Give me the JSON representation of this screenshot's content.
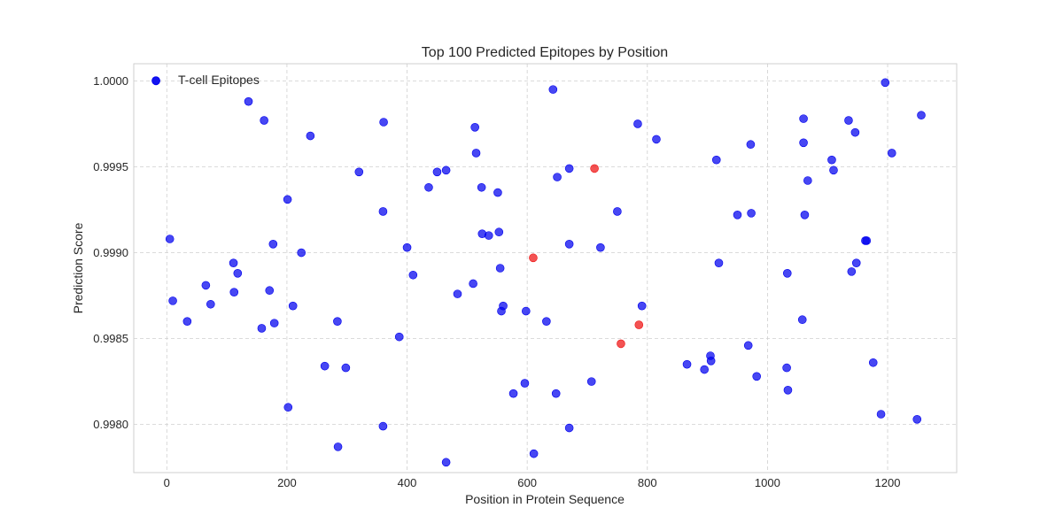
{
  "chart_data": {
    "type": "scatter",
    "title": "Top 100 Predicted Epitopes by Position",
    "xlabel": "Position in Protein Sequence",
    "ylabel": "Prediction Score",
    "xlim": [
      -55,
      1315
    ],
    "ylim": [
      0.99772,
      1.0001
    ],
    "xticks": [
      0,
      200,
      400,
      600,
      800,
      1000,
      1200
    ],
    "xtick_labels": [
      "0",
      "200",
      "400",
      "600",
      "800",
      "1000",
      "1200"
    ],
    "yticks": [
      0.998,
      0.9985,
      0.999,
      0.9995,
      1.0
    ],
    "ytick_labels": [
      "0.9980",
      "0.9985",
      "0.9990",
      "0.9995",
      "1.0000"
    ],
    "grid": true,
    "legend": {
      "position": "top-left",
      "entries": [
        "T-cell Epitopes"
      ]
    },
    "colors": {
      "primary": "#0000ee",
      "highlight": "#ee1111"
    },
    "series": [
      {
        "name": "T-cell Epitopes",
        "color": "#0000ee",
        "points": [
          [
            136,
            0.99988
          ],
          [
            162,
            0.99977
          ],
          [
            239,
            0.99968
          ],
          [
            361,
            0.99976
          ],
          [
            513,
            0.99973
          ],
          [
            643,
            0.99995
          ],
          [
            784,
            0.99975
          ],
          [
            815,
            0.99966
          ],
          [
            1060,
            0.99978
          ],
          [
            1135,
            0.99977
          ],
          [
            1146,
            0.9997
          ],
          [
            1196,
            0.99999
          ],
          [
            1256,
            0.9998
          ],
          [
            320,
            0.99947
          ],
          [
            450,
            0.99947
          ],
          [
            465,
            0.99948
          ],
          [
            515,
            0.99958
          ],
          [
            650,
            0.99944
          ],
          [
            670,
            0.99949
          ],
          [
            915,
            0.99954
          ],
          [
            972,
            0.99963
          ],
          [
            1060,
            0.99964
          ],
          [
            1107,
            0.99954
          ],
          [
            1110,
            0.99948
          ],
          [
            1067,
            0.99942
          ],
          [
            1207,
            0.99958
          ],
          [
            436,
            0.99938
          ],
          [
            524,
            0.99938
          ],
          [
            551,
            0.99935
          ],
          [
            201,
            0.99931
          ],
          [
            360,
            0.99924
          ],
          [
            750,
            0.99924
          ],
          [
            950,
            0.99922
          ],
          [
            973,
            0.99923
          ],
          [
            1062,
            0.99922
          ],
          [
            5,
            0.99908
          ],
          [
            177,
            0.99905
          ],
          [
            224,
            0.999
          ],
          [
            400,
            0.99903
          ],
          [
            525,
            0.99911
          ],
          [
            536,
            0.9991
          ],
          [
            553,
            0.99912
          ],
          [
            670,
            0.99905
          ],
          [
            722,
            0.99903
          ],
          [
            1163,
            0.99907
          ],
          [
            1165,
            0.99907
          ],
          [
            111,
            0.99894
          ],
          [
            118,
            0.99888
          ],
          [
            410,
            0.99887
          ],
          [
            555,
            0.99891
          ],
          [
            919,
            0.99894
          ],
          [
            1033,
            0.99888
          ],
          [
            1140,
            0.99889
          ],
          [
            1148,
            0.99894
          ],
          [
            65,
            0.99881
          ],
          [
            112,
            0.99877
          ],
          [
            171,
            0.99878
          ],
          [
            10,
            0.99872
          ],
          [
            73,
            0.9987
          ],
          [
            210,
            0.99869
          ],
          [
            484,
            0.99876
          ],
          [
            510,
            0.99882
          ],
          [
            557,
            0.99866
          ],
          [
            560,
            0.99869
          ],
          [
            598,
            0.99866
          ],
          [
            791,
            0.99869
          ],
          [
            34,
            0.9986
          ],
          [
            158,
            0.99856
          ],
          [
            179,
            0.99859
          ],
          [
            284,
            0.9986
          ],
          [
            632,
            0.9986
          ],
          [
            1058,
            0.99861
          ],
          [
            387,
            0.99851
          ],
          [
            968,
            0.99846
          ],
          [
            905,
            0.9984
          ],
          [
            906,
            0.99837
          ],
          [
            866,
            0.99835
          ],
          [
            895,
            0.99832
          ],
          [
            263,
            0.99834
          ],
          [
            298,
            0.99833
          ],
          [
            1032,
            0.99833
          ],
          [
            1176,
            0.99836
          ],
          [
            982,
            0.99828
          ],
          [
            596,
            0.99824
          ],
          [
            707,
            0.99825
          ],
          [
            577,
            0.99818
          ],
          [
            648,
            0.99818
          ],
          [
            1034,
            0.9982
          ],
          [
            202,
            0.9981
          ],
          [
            360,
            0.99799
          ],
          [
            670,
            0.99798
          ],
          [
            1189,
            0.99806
          ],
          [
            1249,
            0.99803
          ],
          [
            285,
            0.99787
          ],
          [
            611,
            0.99783
          ],
          [
            465,
            0.99778
          ],
          [
            -18,
            1.0
          ]
        ]
      },
      {
        "name": "",
        "color": "#ee1111",
        "points": [
          [
            712,
            0.99949
          ],
          [
            610,
            0.99897
          ],
          [
            786,
            0.99858
          ],
          [
            756,
            0.99847
          ]
        ]
      }
    ]
  }
}
